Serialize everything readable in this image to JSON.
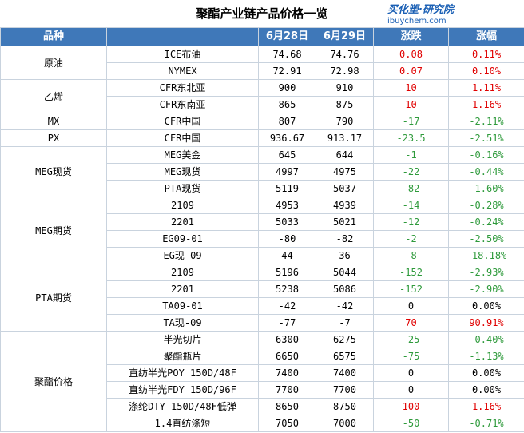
{
  "header": {
    "title": "聚酯产业链产品价格一览",
    "watermark_brand": "买化塑·研究院",
    "watermark_url": "ibuychem.com"
  },
  "table": {
    "columns": [
      "品种",
      "",
      "6月28日",
      "6月29日",
      "涨跌",
      "涨幅"
    ],
    "groups": [
      {
        "category": "原油",
        "rows": [
          {
            "item": "ICE布油",
            "d28": "74.68",
            "d29": "74.76",
            "change": "0.08",
            "pct": "0.11%",
            "dir": "pos"
          },
          {
            "item": "NYMEX",
            "d28": "72.91",
            "d29": "72.98",
            "change": "0.07",
            "pct": "0.10%",
            "dir": "pos"
          }
        ]
      },
      {
        "category": "乙烯",
        "rows": [
          {
            "item": "CFR东北亚",
            "d28": "900",
            "d29": "910",
            "change": "10",
            "pct": "1.11%",
            "dir": "pos"
          },
          {
            "item": "CFR东南亚",
            "d28": "865",
            "d29": "875",
            "change": "10",
            "pct": "1.16%",
            "dir": "pos"
          }
        ]
      },
      {
        "category": "MX",
        "rows": [
          {
            "item": "CFR中国",
            "d28": "807",
            "d29": "790",
            "change": "-17",
            "pct": "-2.11%",
            "dir": "neg"
          }
        ]
      },
      {
        "category": "PX",
        "rows": [
          {
            "item": "CFR中国",
            "d28": "936.67",
            "d29": "913.17",
            "change": "-23.5",
            "pct": "-2.51%",
            "dir": "neg"
          }
        ]
      },
      {
        "category": "MEG现货",
        "rows": [
          {
            "item": "MEG美金",
            "d28": "645",
            "d29": "644",
            "change": "-1",
            "pct": "-0.16%",
            "dir": "neg"
          },
          {
            "item": "MEG现货",
            "d28": "4997",
            "d29": "4975",
            "change": "-22",
            "pct": "-0.44%",
            "dir": "neg"
          },
          {
            "item": "PTA现货",
            "d28": "5119",
            "d29": "5037",
            "change": "-82",
            "pct": "-1.60%",
            "dir": "neg"
          }
        ]
      },
      {
        "category": "MEG期货",
        "rows": [
          {
            "item": "2109",
            "d28": "4953",
            "d29": "4939",
            "change": "-14",
            "pct": "-0.28%",
            "dir": "neg"
          },
          {
            "item": "2201",
            "d28": "5033",
            "d29": "5021",
            "change": "-12",
            "pct": "-0.24%",
            "dir": "neg"
          },
          {
            "item": "EG09-01",
            "d28": "-80",
            "d29": "-82",
            "change": "-2",
            "pct": "-2.50%",
            "dir": "neg"
          },
          {
            "item": "EG现-09",
            "d28": "44",
            "d29": "36",
            "change": "-8",
            "pct": "-18.18%",
            "dir": "neg"
          }
        ]
      },
      {
        "category": "PTA期货",
        "rows": [
          {
            "item": "2109",
            "d28": "5196",
            "d29": "5044",
            "change": "-152",
            "pct": "-2.93%",
            "dir": "neg"
          },
          {
            "item": "2201",
            "d28": "5238",
            "d29": "5086",
            "change": "-152",
            "pct": "-2.90%",
            "dir": "neg"
          },
          {
            "item": "TA09-01",
            "d28": "-42",
            "d29": "-42",
            "change": "0",
            "pct": "0.00%",
            "dir": "zero"
          },
          {
            "item": "TA现-09",
            "d28": "-77",
            "d29": "-7",
            "change": "70",
            "pct": "90.91%",
            "dir": "pos"
          }
        ]
      },
      {
        "category": "聚酯价格",
        "rows": [
          {
            "item": "半光切片",
            "d28": "6300",
            "d29": "6275",
            "change": "-25",
            "pct": "-0.40%",
            "dir": "neg"
          },
          {
            "item": "聚酯瓶片",
            "d28": "6650",
            "d29": "6575",
            "change": "-75",
            "pct": "-1.13%",
            "dir": "neg"
          },
          {
            "item": "直纺半光POY 150D/48F",
            "d28": "7400",
            "d29": "7400",
            "change": "0",
            "pct": "0.00%",
            "dir": "zero"
          },
          {
            "item": "直纺半光FDY 150D/96F",
            "d28": "7700",
            "d29": "7700",
            "change": "0",
            "pct": "0.00%",
            "dir": "zero"
          },
          {
            "item": "涤纶DTY 150D/48F低弹",
            "d28": "8650",
            "d29": "8750",
            "change": "100",
            "pct": "1.16%",
            "dir": "pos"
          },
          {
            "item": "1.4直纺涤短",
            "d28": "7050",
            "d29": "7000",
            "change": "-50",
            "pct": "-0.71%",
            "dir": "neg"
          }
        ]
      }
    ]
  },
  "colors": {
    "header_bg": "#3f78b9",
    "up": "#e00000",
    "down": "#2e9a3b",
    "border": "#c9d3de",
    "watermark": "#1a5fb4"
  }
}
